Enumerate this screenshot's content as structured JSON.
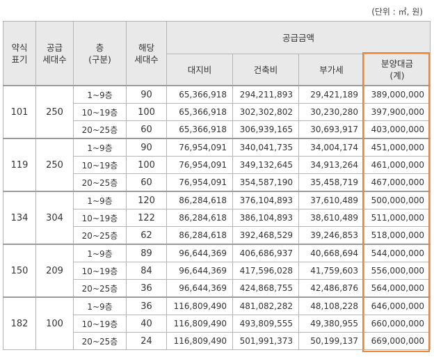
{
  "unit": "(단위 : ㎡, 원)",
  "table": {
    "headers": {
      "abbr": [
        "약식",
        "표기"
      ],
      "supply_units": [
        "공급",
        "세대수"
      ],
      "floor": [
        "층",
        "(구분)"
      ],
      "units": [
        "해당",
        "세대수"
      ],
      "supply_amount": "공급금액",
      "land": "대지비",
      "building": "건축비",
      "vat": "부가세",
      "total": [
        "분양대금",
        "(계)"
      ]
    },
    "groups": [
      {
        "type": "101",
        "supply": "250",
        "rows": [
          {
            "floor": "1~9층",
            "units": "90",
            "land": "65,366,918",
            "building": "294,211,893",
            "vat": "29,421,189",
            "total": "389,000,000"
          },
          {
            "floor": "10~19층",
            "units": "100",
            "land": "65,366,918",
            "building": "302,302,802",
            "vat": "30,230,280",
            "total": "397,900,000"
          },
          {
            "floor": "20~25층",
            "units": "60",
            "land": "65,366,918",
            "building": "306,939,165",
            "vat": "30,693,917",
            "total": "403,000,000"
          }
        ]
      },
      {
        "type": "119",
        "supply": "250",
        "rows": [
          {
            "floor": "1~9층",
            "units": "90",
            "land": "76,954,091",
            "building": "340,041,735",
            "vat": "34,004,174",
            "total": "451,000,000"
          },
          {
            "floor": "10~19층",
            "units": "100",
            "land": "76,954,091",
            "building": "349,132,645",
            "vat": "34,913,264",
            "total": "461,000,000"
          },
          {
            "floor": "20~25층",
            "units": "60",
            "land": "76,954,091",
            "building": "354,587,190",
            "vat": "35,458,719",
            "total": "467,000,000"
          }
        ]
      },
      {
        "type": "134",
        "supply": "304",
        "rows": [
          {
            "floor": "1~9층",
            "units": "120",
            "land": "86,284,618",
            "building": "376,104,893",
            "vat": "37,610,489",
            "total": "500,000,000"
          },
          {
            "floor": "10~19층",
            "units": "122",
            "land": "86,284,618",
            "building": "386,104,893",
            "vat": "38,610,489",
            "total": "511,000,000"
          },
          {
            "floor": "20~25층",
            "units": "62",
            "land": "86,284,618",
            "building": "392,468,529",
            "vat": "39,246,853",
            "total": "518,000,000"
          }
        ]
      },
      {
        "type": "150",
        "supply": "209",
        "rows": [
          {
            "floor": "1~9층",
            "units": "89",
            "land": "96,644,369",
            "building": "406,686,937",
            "vat": "40,668,694",
            "total": "544,000,000"
          },
          {
            "floor": "10~19층",
            "units": "84",
            "land": "96,644,369",
            "building": "417,596,028",
            "vat": "41,759,603",
            "total": "556,000,000"
          },
          {
            "floor": "20~25층",
            "units": "36",
            "land": "96,644,369",
            "building": "424,868,755",
            "vat": "42,486,876",
            "total": "564,000,000"
          }
        ]
      },
      {
        "type": "182",
        "supply": "100",
        "rows": [
          {
            "floor": "1~9층",
            "units": "36",
            "land": "116,809,490",
            "building": "481,082,282",
            "vat": "48,108,228",
            "total": "646,000,000"
          },
          {
            "floor": "10~19층",
            "units": "40",
            "land": "116,809,490",
            "building": "493,809,555",
            "vat": "49,380,955",
            "total": "660,000,000"
          },
          {
            "floor": "20~25층",
            "units": "24",
            "land": "116,809,490",
            "building": "501,991,373",
            "vat": "50,199,137",
            "total": "669,000,000"
          }
        ]
      }
    ]
  },
  "colors": {
    "highlight_border": "#ee8735",
    "header_bg": "#e9e9e9",
    "grid_line": "#b5b5b5"
  }
}
